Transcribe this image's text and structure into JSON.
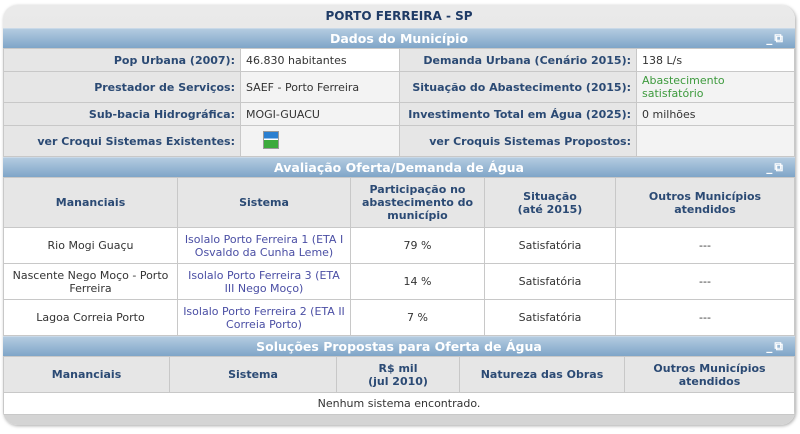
{
  "title": "PORTO FERREIRA - SP",
  "dados": {
    "header": "Dados do Município",
    "pop_label": "Pop Urbana (2007):",
    "pop_value": "46.830 habitantes",
    "demanda_label": "Demanda Urbana (Cenário 2015):",
    "demanda_value": "138 L/s",
    "prestador_label": "Prestador de Serviços:",
    "prestador_value": "SAEF - Porto Ferreira",
    "situacao_label": "Situação do Abastecimento (2015):",
    "situacao_value": "Abastecimento satisfatório",
    "subbacia_label": "Sub-bacia Hidrográfica:",
    "subbacia_value": "MOGI-GUACU",
    "investimento_label": "Investimento Total em Água (2025):",
    "investimento_value": "0 milhões",
    "croqui_exist_label": "ver Croqui Sistemas Existentes:",
    "croqui_prop_label": "ver Croquis Sistemas Propostos:"
  },
  "colors": {
    "situacao": "#3d9a3d",
    "header": "#7fa5c8",
    "label": "#2b4a74"
  },
  "avaliacao": {
    "header": "Avaliação Oferta/Demanda de Água",
    "columns": [
      "Mananciais",
      "Sistema",
      "Participação no abastecimento do município",
      "Situação\n(até 2015)",
      "Outros Municípios atendidos"
    ],
    "rows": [
      {
        "manancial": "Rio Mogi Guaçu",
        "sistema": "Isolalo Porto Ferreira 1 (ETA I Osvaldo da Cunha Leme)",
        "participacao": "79 %",
        "situacao": "Satisfatória",
        "outros": "---"
      },
      {
        "manancial": "Nascente Nego Moço - Porto Ferreira",
        "sistema": "Isolalo Porto Ferreira 3 (ETA III Nego Moço)",
        "participacao": "14 %",
        "situacao": "Satisfatória",
        "outros": "---"
      },
      {
        "manancial": "Lagoa Correia Porto",
        "sistema": "Isolalo Porto Ferreira 2 (ETA II Correia Porto)",
        "participacao": "7 %",
        "situacao": "Satisfatória",
        "outros": "---"
      }
    ]
  },
  "solucoes": {
    "header": "Soluções Propostas para Oferta de Água",
    "columns": [
      "Mananciais",
      "Sistema",
      "R$ mil\n(jul 2010)",
      "Natureza das Obras",
      "Outros Municípios atendidos"
    ],
    "empty": "Nenhum sistema encontrado."
  },
  "controls": {
    "minimize": "_",
    "restore": "⧉"
  }
}
